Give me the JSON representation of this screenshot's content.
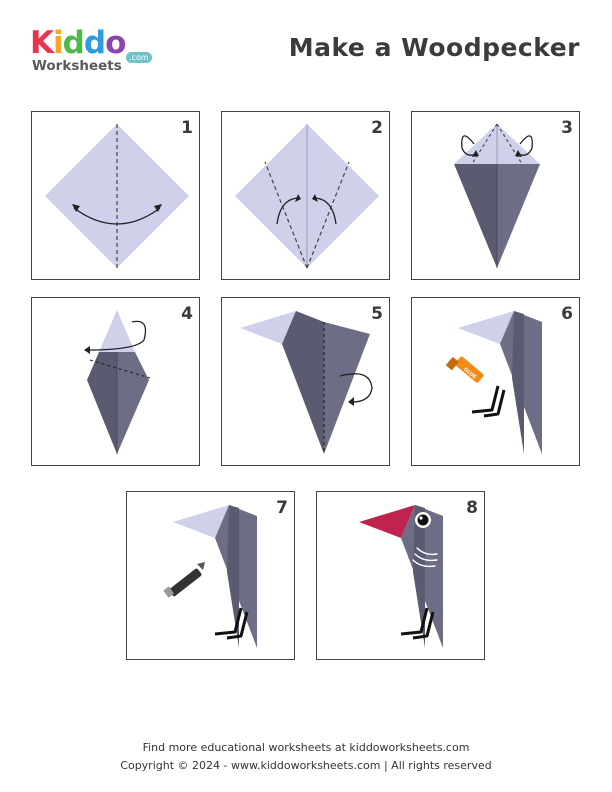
{
  "logo": {
    "letters": [
      {
        "char": "K",
        "color": "#e8344e"
      },
      {
        "char": "i",
        "color": "#f6a623"
      },
      {
        "char": "d",
        "color": "#4cb848"
      },
      {
        "char": "d",
        "color": "#2e9be0"
      },
      {
        "char": "o",
        "color": "#8e44ad"
      }
    ],
    "sub": "Worksheets",
    "com": ".com"
  },
  "title": "Make a Woodpecker",
  "steps": [
    {
      "num": "1"
    },
    {
      "num": "2"
    },
    {
      "num": "3"
    },
    {
      "num": "4"
    },
    {
      "num": "5"
    },
    {
      "num": "6"
    },
    {
      "num": "7"
    },
    {
      "num": "8"
    }
  ],
  "glue_label": "GLUE",
  "footer": {
    "line1": "Find more educational worksheets at kiddoworksheets.com",
    "line2": "Copyright © 2024 - www.kiddoworksheets.com  |  All rights reserved"
  },
  "colors": {
    "paper_light": "#cfd0ea",
    "paper_dark": "#5a5a70",
    "paper_dark2": "#6d6d85",
    "beak": "#c0234f",
    "glue": "#f08c1a"
  }
}
